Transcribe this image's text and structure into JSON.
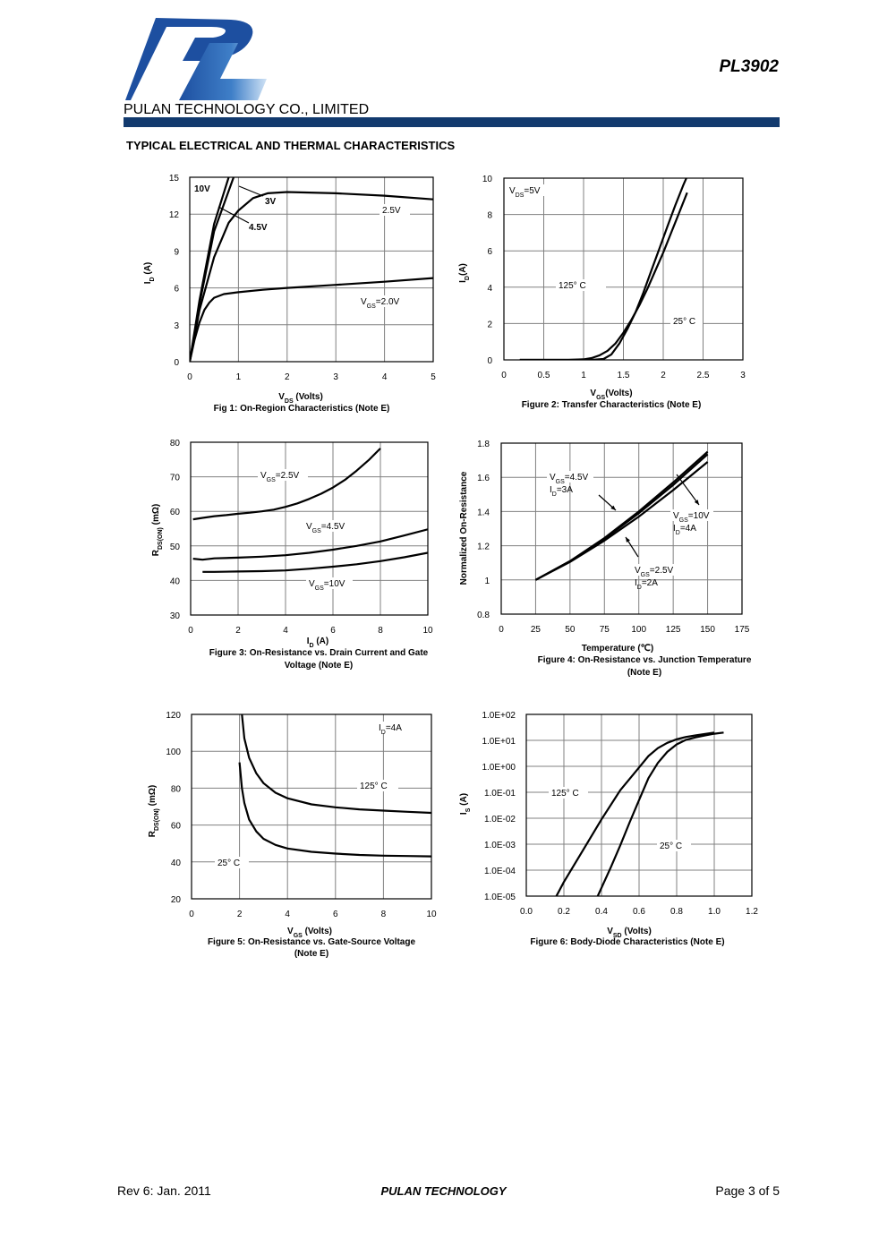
{
  "header": {
    "company": "PULAN TECHNOLOGY CO., LIMITED",
    "part_number": "PL3902",
    "logo_text": "PL",
    "brand_color": "#123a6e",
    "logo_color": "#1d4fa0"
  },
  "section_title": "TYPICAL ELECTRICAL AND THERMAL CHARACTERISTICS",
  "footer": {
    "revision": "Rev 6: Jan. 2011",
    "company": "PULAN TECHNOLOGY",
    "page": "Page 3 of 5"
  },
  "chart_data": [
    {
      "type": "line",
      "caption": "Fig 1: On-Region Characteristics (Note E)",
      "xlabel_main": "V",
      "xlabel_sub": "DS",
      "xlabel_rest": " (Volts)",
      "ylabel_main": "I",
      "ylabel_sub": "D",
      "ylabel_rest": " (A)",
      "xlim": [
        0,
        5
      ],
      "ylim": [
        0,
        15
      ],
      "xticks": [
        "0",
        "1",
        "2",
        "3",
        "4",
        "5"
      ],
      "yticks": [
        "0",
        "3",
        "6",
        "9",
        "12",
        "15"
      ],
      "series": [
        {
          "name": "10V",
          "x": [
            0,
            0.2,
            0.5,
            0.8,
            1.0
          ],
          "y": [
            0,
            5,
            11.2,
            15,
            16.5
          ]
        },
        {
          "name": "4.5V",
          "x": [
            0,
            0.2,
            0.5,
            0.9,
            1.0
          ],
          "y": [
            0,
            4.7,
            10.6,
            15,
            16
          ]
        },
        {
          "name": "3V",
          "x": [
            0,
            0.2,
            0.5,
            0.8,
            1.0,
            1.3,
            1.6,
            2.0,
            3.0,
            4.0,
            5.0
          ],
          "y": [
            0,
            4.2,
            8.5,
            11.3,
            12.3,
            13.3,
            13.7,
            13.8,
            13.7,
            13.5,
            13.2
          ]
        },
        {
          "name": "2.5V",
          "x": [
            0,
            0.1,
            0.2,
            0.3,
            0.4,
            0.5,
            0.7,
            1.0,
            1.5,
            2.0,
            3.0,
            4.0,
            5.0
          ],
          "y": [
            0,
            1.8,
            3.2,
            4.2,
            4.8,
            5.2,
            5.5,
            5.65,
            5.85,
            6.0,
            6.25,
            6.5,
            6.8
          ]
        }
      ],
      "labels": [
        {
          "text": "10V"
        },
        {
          "text": "3V"
        },
        {
          "text": "4.5V"
        },
        {
          "text": "2.5V"
        },
        {
          "main": "V",
          "sub": "GS",
          "rest": "=2.0V"
        }
      ]
    },
    {
      "type": "line",
      "caption": "Figure 2: Transfer Characteristics (Note E)",
      "xlabel_main": "V",
      "xlabel_sub": "GS",
      "xlabel_rest": "(Volts)",
      "ylabel_main": "I",
      "ylabel_sub": "D",
      "ylabel_rest": "(A)",
      "xlim": [
        0,
        3
      ],
      "ylim": [
        0,
        10
      ],
      "xticks": [
        "0",
        "0.5",
        "1",
        "1.5",
        "2",
        "2.5",
        "3"
      ],
      "yticks": [
        "0",
        "2",
        "4",
        "6",
        "8",
        "10"
      ],
      "series": [
        {
          "name": "125° C",
          "x": [
            0.2,
            0.8,
            1.0,
            1.1,
            1.2,
            1.3,
            1.4,
            1.5,
            1.6,
            1.7,
            1.8,
            1.9,
            2.0,
            2.1,
            2.2,
            2.3
          ],
          "y": [
            0,
            0,
            0.03,
            0.1,
            0.25,
            0.5,
            0.9,
            1.5,
            2.2,
            3.0,
            3.9,
            4.9,
            5.9,
            7.0,
            8.1,
            9.2
          ]
        },
        {
          "name": "25° C",
          "x": [
            0.2,
            1.1,
            1.25,
            1.35,
            1.45,
            1.55,
            1.65,
            1.75,
            1.85,
            1.95,
            2.05,
            2.15,
            2.25,
            2.3,
            2.35
          ],
          "y": [
            0,
            0,
            0.05,
            0.3,
            0.9,
            1.7,
            2.6,
            3.7,
            4.9,
            6.1,
            7.3,
            8.5,
            9.6,
            10.1,
            10.4
          ]
        }
      ],
      "labels": [
        {
          "main": "V",
          "sub": "DS",
          "rest": "=5V"
        },
        {
          "text": "125° C"
        },
        {
          "text": "25° C"
        }
      ]
    },
    {
      "type": "line",
      "caption_lines": [
        "Figure 3: On-Resistance vs. Drain Current and Gate",
        "Voltage (Note E)"
      ],
      "xlabel_main": "I",
      "xlabel_sub": "D",
      "xlabel_rest": " (A)",
      "ylabel_main": "R",
      "ylabel_sub": "DS(ON)",
      "ylabel_rest": " (mΩ)",
      "xlim": [
        0,
        10
      ],
      "ylim": [
        30,
        80
      ],
      "xticks": [
        "0",
        "2",
        "4",
        "6",
        "8",
        "10"
      ],
      "yticks": [
        "30",
        "40",
        "50",
        "60",
        "70",
        "80"
      ],
      "series": [
        {
          "name": "2.5V",
          "x": [
            0.1,
            0.5,
            1,
            1.5,
            2,
            2.5,
            3,
            3.5,
            4,
            4.5,
            5,
            5.5,
            6,
            6.5,
            7,
            7.5,
            8
          ],
          "y": [
            57.7,
            58.1,
            58.6,
            58.9,
            59.3,
            59.6,
            60.0,
            60.5,
            61.3,
            62.3,
            63.6,
            65.1,
            66.9,
            69.1,
            71.8,
            74.8,
            78.2
          ]
        },
        {
          "name": "4.5V",
          "x": [
            0.1,
            0.5,
            1,
            2,
            3,
            4,
            5,
            6,
            7,
            8,
            9,
            10
          ],
          "y": [
            46.3,
            46.0,
            46.4,
            46.6,
            46.9,
            47.3,
            48.0,
            48.9,
            50.0,
            51.3,
            53.0,
            54.8
          ]
        },
        {
          "name": "10V",
          "x": [
            0.5,
            1,
            2,
            3,
            4,
            5,
            6,
            7,
            8,
            9,
            10
          ],
          "y": [
            42.5,
            42.5,
            42.6,
            42.7,
            42.9,
            43.4,
            44.0,
            44.7,
            45.6,
            46.7,
            48.0
          ]
        }
      ],
      "labels": [
        {
          "main": "V",
          "sub": "GS",
          "rest": "=2.5V"
        },
        {
          "main": "V",
          "sub": "GS",
          "rest": "=4.5V"
        },
        {
          "main": "V",
          "sub": "GS",
          "rest": "=10V"
        }
      ]
    },
    {
      "type": "line",
      "caption_lines": [
        "Figure 4: On-Resistance vs. Junction Temperature",
        "(Note E)"
      ],
      "xlabel": "Temperature (℃)",
      "ylabel": "Normalized On-Resistance",
      "xlim": [
        0,
        175
      ],
      "ylim": [
        0.8,
        1.8
      ],
      "xticks": [
        "0",
        "25",
        "50",
        "75",
        "100",
        "125",
        "150",
        "175"
      ],
      "yticks": [
        "0.8",
        "1",
        "1.2",
        "1.4",
        "1.6",
        "1.8"
      ],
      "series": [
        {
          "name": "VGS=4.5V ID=3A",
          "x": [
            25,
            50,
            75,
            100,
            125,
            150
          ],
          "y": [
            1.0,
            1.11,
            1.245,
            1.4,
            1.57,
            1.75
          ]
        },
        {
          "name": "VGS=10V ID=4A",
          "x": [
            25,
            50,
            75,
            100,
            125,
            150
          ],
          "y": [
            1.0,
            1.11,
            1.24,
            1.39,
            1.555,
            1.735
          ]
        },
        {
          "name": "VGS=2.5V ID=2A",
          "x": [
            25,
            50,
            75,
            100,
            125,
            150
          ],
          "y": [
            1.0,
            1.105,
            1.23,
            1.37,
            1.525,
            1.69
          ]
        }
      ],
      "labels": [
        {
          "main": "V",
          "sub": "GS",
          "rest": "=4.5V"
        },
        {
          "main": "I",
          "sub": "D",
          "rest": "=3A"
        },
        {
          "main": "V",
          "sub": "GS",
          "rest": "=10V"
        },
        {
          "main": "I",
          "sub": "D",
          "rest": "=4A"
        },
        {
          "main": "V",
          "sub": "GS",
          "rest": "=2.5V"
        },
        {
          "main": "I",
          "sub": "D",
          "rest": "=2A"
        }
      ]
    },
    {
      "type": "line",
      "caption_lines": [
        "Figure 5: On-Resistance vs. Gate-Source Voltage",
        "(Note E)"
      ],
      "xlabel_main": "V",
      "xlabel_sub": "GS",
      "xlabel_rest": " (Volts)",
      "ylabel_main": "R",
      "ylabel_sub": "DS(ON)",
      "ylabel_rest": " (mΩ)",
      "xlim": [
        0,
        10
      ],
      "ylim": [
        20,
        120
      ],
      "xticks": [
        "0",
        "2",
        "4",
        "6",
        "8",
        "10"
      ],
      "yticks": [
        "20",
        "40",
        "60",
        "80",
        "100",
        "120"
      ],
      "series": [
        {
          "name": "125° C",
          "x": [
            2.1,
            2.2,
            2.4,
            2.7,
            3.0,
            3.5,
            4,
            5,
            6,
            7,
            8,
            9,
            10
          ],
          "y": [
            120,
            107,
            96.5,
            88,
            82.7,
            77.5,
            74.5,
            71.2,
            69.6,
            68.5,
            67.8,
            67.2,
            66.6
          ]
        },
        {
          "name": "25° C",
          "x": [
            2.0,
            2.1,
            2.2,
            2.4,
            2.7,
            3.0,
            3.5,
            4,
            5,
            6,
            7,
            8,
            9,
            10
          ],
          "y": [
            94,
            80,
            72,
            63,
            56.5,
            52.5,
            49.2,
            47.3,
            45.5,
            44.5,
            43.8,
            43.4,
            43.2,
            43.0
          ]
        }
      ],
      "labels": [
        {
          "main": "I",
          "sub": "D",
          "rest": "=4A"
        },
        {
          "text": "125° C"
        },
        {
          "text": "25° C"
        }
      ]
    },
    {
      "type": "line",
      "caption": "Figure 6: Body-Diode Characteristics (Note E)",
      "xlabel_main": "V",
      "xlabel_sub": "SD",
      "xlabel_rest": " (Volts)",
      "ylabel_main": "I",
      "ylabel_sub": "S",
      "ylabel_rest": " (A)",
      "yscale": "log",
      "xlim": [
        0,
        1.2
      ],
      "ylim": [
        1e-05,
        100
      ],
      "xticks": [
        "0.0",
        "0.2",
        "0.4",
        "0.6",
        "0.8",
        "1.0",
        "1.2"
      ],
      "yticks": [
        "1.0E-05",
        "1.0E-04",
        "1.0E-03",
        "1.0E-02",
        "1.0E-01",
        "1.0E+00",
        "1.0E+01",
        "1.0E+02"
      ],
      "series": [
        {
          "name": "125° C",
          "x": [
            0.16,
            0.2,
            0.3,
            0.4,
            0.5,
            0.6,
            0.65,
            0.7,
            0.75,
            0.8,
            0.85,
            0.9,
            1.0
          ],
          "y": [
            1e-05,
            3.5e-05,
            0.00056,
            0.009,
            0.12,
            0.9,
            2.5,
            5.0,
            8.0,
            11.0,
            13.5,
            15.5,
            20.0
          ]
        },
        {
          "name": "25° C",
          "x": [
            0.38,
            0.45,
            0.5,
            0.55,
            0.6,
            0.65,
            0.7,
            0.75,
            0.8,
            0.85,
            0.9,
            0.95,
            1.0,
            1.05
          ],
          "y": [
            1e-05,
            0.00013,
            0.0009,
            0.007,
            0.05,
            0.35,
            1.35,
            3.6,
            7.0,
            10.5,
            13.0,
            15.5,
            18.0,
            20.0
          ]
        }
      ],
      "labels": [
        {
          "text": "125° C"
        },
        {
          "text": "25° C"
        }
      ]
    }
  ]
}
